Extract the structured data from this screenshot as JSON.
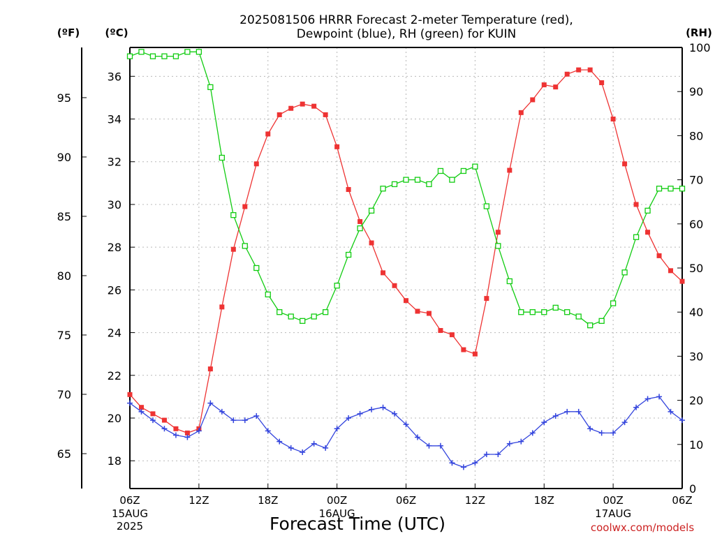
{
  "chart_data": {
    "type": "line",
    "title_line1": "2025081506 HRRR Forecast 2-meter Temperature (red),",
    "title_line2": "Dewpoint (blue), RH (green) for KUIN",
    "xlabel": "Forecast Time (UTC)",
    "credit": "coolwx.com/models",
    "left_unit_f": "(ºF)",
    "left_unit_c": "(ºC)",
    "right_unit": "(RH)",
    "x_range_hours": [
      6,
      54
    ],
    "celsius_ylim": [
      16.7,
      37.35
    ],
    "rh_ylim": [
      0,
      100
    ],
    "x_ticks": [
      {
        "h": 6,
        "label": "06Z",
        "sub": "15AUG",
        "sub2": "2025"
      },
      {
        "h": 12,
        "label": "12Z"
      },
      {
        "h": 18,
        "label": "18Z"
      },
      {
        "h": 24,
        "label": "00Z",
        "sub": "16AUG"
      },
      {
        "h": 30,
        "label": "06Z"
      },
      {
        "h": 36,
        "label": "12Z"
      },
      {
        "h": 42,
        "label": "18Z"
      },
      {
        "h": 48,
        "label": "00Z",
        "sub": "17AUG"
      },
      {
        "h": 54,
        "label": "06Z"
      }
    ],
    "celsius_ticks": [
      18,
      20,
      22,
      24,
      26,
      28,
      30,
      32,
      34,
      36
    ],
    "fahrenheit_ticks": [
      65,
      70,
      75,
      80,
      85,
      90,
      95
    ],
    "rh_ticks": [
      0,
      10,
      20,
      30,
      40,
      50,
      60,
      70,
      80,
      90,
      100
    ],
    "series": [
      {
        "name": "Temperature",
        "unit": "C",
        "color": "#ee3333",
        "marker": "filled-square",
        "values": [
          21.1,
          20.5,
          20.2,
          19.9,
          19.5,
          19.3,
          19.5,
          22.3,
          25.2,
          27.9,
          29.9,
          31.9,
          33.3,
          34.2,
          34.5,
          34.7,
          34.6,
          34.2,
          32.7,
          30.7,
          29.2,
          28.2,
          26.8,
          26.2,
          25.5,
          25.0,
          24.9,
          24.1,
          23.9,
          23.2,
          23.0,
          25.6,
          28.7,
          31.6,
          34.3,
          34.9,
          35.6,
          35.5,
          36.1,
          36.3,
          36.3,
          35.7,
          34.0,
          31.9,
          30.0,
          28.7,
          27.6,
          26.9,
          26.4
        ]
      },
      {
        "name": "Dewpoint",
        "unit": "C",
        "color": "#3344dd",
        "marker": "plus",
        "values": [
          20.7,
          20.3,
          19.9,
          19.5,
          19.2,
          19.1,
          19.4,
          20.7,
          20.3,
          19.9,
          19.9,
          20.1,
          19.4,
          18.9,
          18.6,
          18.4,
          18.8,
          18.6,
          19.5,
          20.0,
          20.2,
          20.4,
          20.5,
          20.2,
          19.7,
          19.1,
          18.7,
          18.7,
          17.9,
          17.7,
          17.9,
          18.3,
          18.3,
          18.8,
          18.9,
          19.3,
          19.8,
          20.1,
          20.3,
          20.3,
          19.5,
          19.3,
          19.3,
          19.8,
          20.5,
          20.9,
          21.0,
          20.3,
          19.9
        ]
      },
      {
        "name": "RH",
        "unit": "%",
        "color": "#11cc11",
        "marker": "open-square",
        "values": [
          98,
          99,
          98,
          98,
          98,
          99,
          99,
          91,
          75,
          62,
          55,
          50,
          44,
          40,
          39,
          38,
          39,
          40,
          46,
          53,
          59,
          63,
          68,
          69,
          70,
          70,
          69,
          72,
          70,
          72,
          73,
          64,
          55,
          47,
          40,
          40,
          40,
          41,
          40,
          39,
          37,
          38,
          42,
          49,
          57,
          63,
          68,
          68,
          68
        ]
      }
    ]
  }
}
